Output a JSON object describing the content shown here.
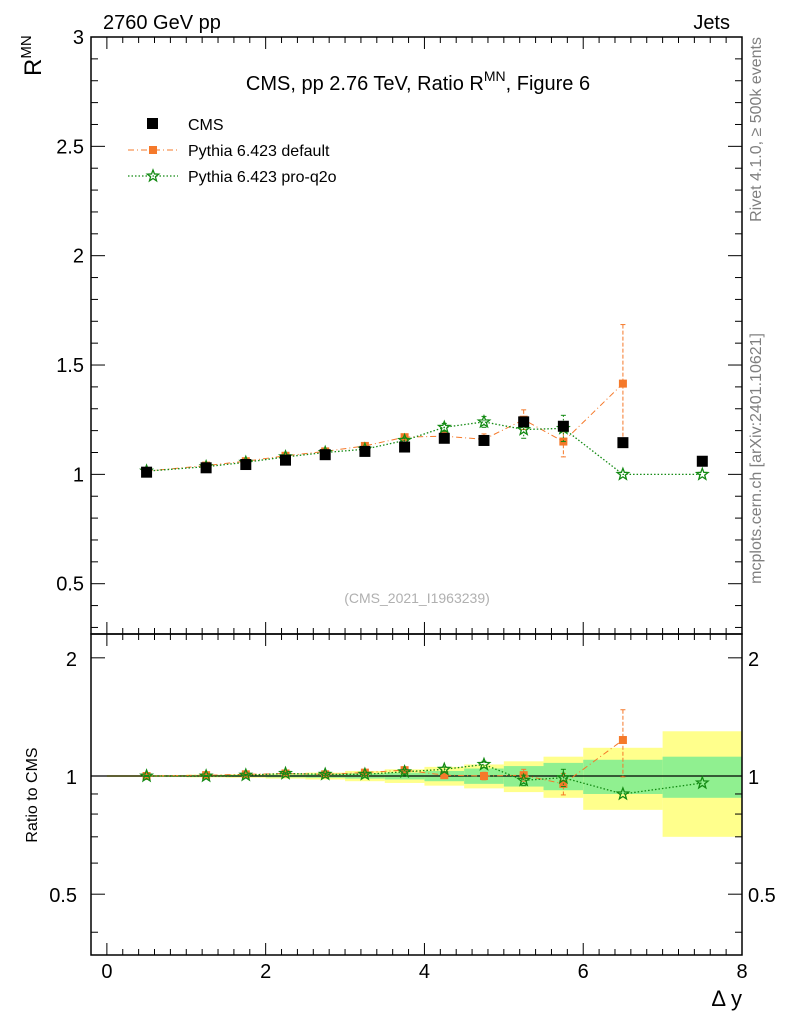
{
  "header": {
    "left_label": "2760 GeV pp",
    "right_label": "Jets"
  },
  "side_labels": {
    "rivet": "Rivet 4.1.0, ≥ 500k events",
    "mcplots": "mcplots.cern.ch [arXiv:2401.10621]"
  },
  "chart_data": [
    {
      "type": "scatter",
      "panel": "main",
      "title": "CMS, pp 2.76 TeV, Ratio R^MN, Figure 6",
      "title_parts": {
        "prefix": "CMS, pp 2.76 TeV, Ratio R",
        "sup": "MN",
        "suffix": ", Figure 6"
      },
      "watermark": "(CMS_2021_I1963239)",
      "ylabel": {
        "base": "R",
        "sup": "MN"
      },
      "xlim": [
        -0.2,
        8.0
      ],
      "ylim": [
        0.27,
        3.0
      ],
      "yticks": [
        0.5,
        1,
        1.5,
        2,
        2.5,
        3
      ],
      "ytick_labels": [
        "0.5",
        "1",
        "1.5",
        "2",
        "2.5",
        "3"
      ],
      "legend_position": "top-left",
      "series": [
        {
          "name": "CMS",
          "color": "#000000",
          "marker": "square",
          "x": [
            0.5,
            1.25,
            1.75,
            2.25,
            2.75,
            3.25,
            3.75,
            4.25,
            4.75,
            5.25,
            5.75,
            6.5,
            7.5
          ],
          "y": [
            1.01,
            1.03,
            1.045,
            1.065,
            1.09,
            1.105,
            1.125,
            1.165,
            1.155,
            1.24,
            1.22,
            1.145,
            1.06
          ]
        },
        {
          "name": "Pythia 6.423 default",
          "color": "#f5792a",
          "marker": "square-small",
          "line": "dash-dot",
          "x": [
            0.5,
            1.25,
            1.75,
            2.25,
            2.75,
            3.25,
            3.75,
            4.25,
            4.75,
            5.25,
            5.75,
            6.5
          ],
          "y": [
            1.015,
            1.04,
            1.06,
            1.085,
            1.105,
            1.13,
            1.17,
            1.175,
            1.16,
            1.25,
            1.15,
            1.415
          ],
          "yerr": [
            0.003,
            0.003,
            0.004,
            0.005,
            0.006,
            0.008,
            0.012,
            0.02,
            0.025,
            0.045,
            0.07,
            0.27
          ]
        },
        {
          "name": "Pythia 6.423 pro-q2o",
          "color": "#138a13",
          "marker": "star",
          "line": "dotted",
          "x": [
            0.5,
            1.25,
            1.75,
            2.25,
            2.75,
            3.25,
            3.75,
            4.25,
            4.75,
            5.25,
            5.75,
            6.5,
            7.5
          ],
          "y": [
            1.015,
            1.035,
            1.055,
            1.08,
            1.1,
            1.115,
            1.155,
            1.215,
            1.24,
            1.205,
            1.21,
            1.0,
            1.0
          ],
          "yerr": [
            0.003,
            0.003,
            0.004,
            0.005,
            0.006,
            0.008,
            0.012,
            0.018,
            0.025,
            0.04,
            0.06,
            0.0,
            0.0
          ]
        }
      ]
    },
    {
      "type": "scatter",
      "panel": "ratio",
      "ylabel": "Ratio to CMS",
      "xlabel": "Δ y",
      "xlim": [
        -0.2,
        8.0
      ],
      "ylim": [
        0.35,
        2.3
      ],
      "xticks": [
        0,
        2,
        4,
        6,
        8
      ],
      "xtick_labels": [
        "0",
        "2",
        "4",
        "6",
        "8"
      ],
      "yticks": [
        0.5,
        1,
        2
      ],
      "ytick_labels": [
        "0.5",
        "1",
        "2"
      ],
      "reference_line": 1.0,
      "uncertainty_bands": {
        "bins": [
          [
            0.0,
            1.0
          ],
          [
            1.0,
            1.5
          ],
          [
            1.5,
            2.0
          ],
          [
            2.0,
            2.5
          ],
          [
            2.5,
            3.0
          ],
          [
            3.0,
            3.5
          ],
          [
            3.5,
            4.0
          ],
          [
            4.0,
            4.5
          ],
          [
            4.5,
            5.0
          ],
          [
            5.0,
            5.5
          ],
          [
            5.5,
            6.0
          ],
          [
            6.0,
            7.0
          ],
          [
            7.0,
            8.0
          ]
        ],
        "stat": [
          0.003,
          0.004,
          0.005,
          0.008,
          0.01,
          0.015,
          0.02,
          0.03,
          0.045,
          0.06,
          0.08,
          0.1,
          0.12
        ],
        "total": [
          0.006,
          0.008,
          0.01,
          0.015,
          0.02,
          0.03,
          0.04,
          0.055,
          0.07,
          0.09,
          0.12,
          0.18,
          0.3
        ]
      },
      "series": [
        {
          "name": "Pythia 6.423 default",
          "color": "#f5792a",
          "marker": "square-small",
          "line": "dash-dot",
          "x": [
            0.5,
            1.25,
            1.75,
            2.25,
            2.75,
            3.25,
            3.75,
            4.25,
            4.75,
            5.25,
            5.75,
            6.5
          ],
          "y": [
            1.0,
            1.005,
            1.01,
            1.015,
            1.01,
            1.02,
            1.035,
            1.005,
            1.0,
            1.005,
            0.955,
            1.235
          ],
          "yerr": [
            0.003,
            0.003,
            0.004,
            0.005,
            0.006,
            0.008,
            0.012,
            0.018,
            0.022,
            0.035,
            0.06,
            0.24
          ]
        },
        {
          "name": "Pythia 6.423 pro-q2o",
          "color": "#138a13",
          "marker": "star",
          "line": "dotted",
          "x": [
            0.5,
            1.25,
            1.75,
            2.25,
            2.75,
            3.25,
            3.75,
            4.25,
            4.75,
            5.25,
            5.75,
            6.5,
            7.5
          ],
          "y": [
            1.0,
            1.0,
            1.005,
            1.015,
            1.01,
            1.01,
            1.025,
            1.04,
            1.07,
            0.975,
            0.99,
            0.9,
            0.96
          ],
          "yerr": [
            0.003,
            0.003,
            0.004,
            0.005,
            0.006,
            0.008,
            0.012,
            0.015,
            0.02,
            0.03,
            0.05,
            0.0,
            0.0
          ]
        }
      ]
    }
  ]
}
